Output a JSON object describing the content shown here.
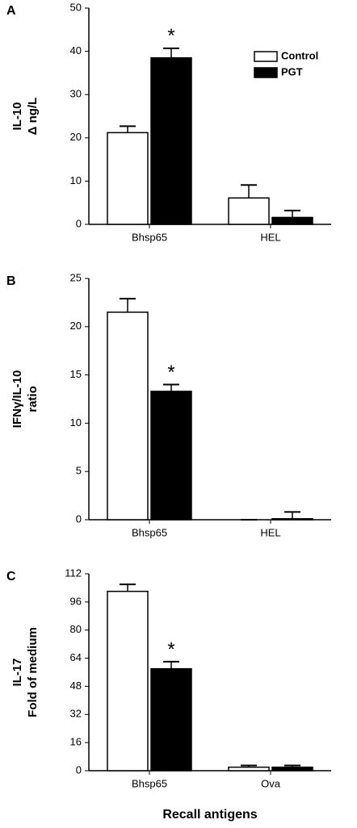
{
  "chart_data": [
    {
      "type": "bar",
      "panel": "A",
      "ylabel": [
        "IL-10",
        "Δ ng/L"
      ],
      "categories": [
        "Bhsp65",
        "HEL"
      ],
      "series": [
        {
          "name": "Control",
          "color": "#ffffff",
          "values": [
            21.2,
            6.1
          ],
          "errors": [
            1.5,
            3.0
          ]
        },
        {
          "name": "PGT",
          "color": "#000000",
          "values": [
            38.5,
            1.6
          ],
          "errors": [
            2.2,
            1.6
          ]
        }
      ],
      "ylim": [
        0,
        50
      ],
      "yticks": [
        0,
        10,
        20,
        30,
        40,
        50
      ],
      "annotation": "*",
      "legend": "upper right"
    },
    {
      "type": "bar",
      "panel": "B",
      "ylabel": [
        "IFNγ/IL-10",
        "ratio"
      ],
      "categories": [
        "Bhsp65",
        "HEL"
      ],
      "series": [
        {
          "color": "#ffffff",
          "values": [
            21.5,
            0
          ],
          "errors": [
            1.4,
            0
          ]
        },
        {
          "color": "#000000",
          "values": [
            13.3,
            0.1
          ],
          "errors": [
            0.7,
            0.7
          ]
        }
      ],
      "ylim": [
        0,
        25
      ],
      "yticks": [
        0,
        5,
        10,
        15,
        20,
        25
      ],
      "annotation": "*"
    },
    {
      "type": "bar",
      "panel": "C",
      "ylabel": [
        "IL-17",
        "Fold of medium"
      ],
      "categories": [
        "Bhsp65",
        "Ova"
      ],
      "xlabel": "Recall antigens",
      "series": [
        {
          "color": "#ffffff",
          "values": [
            102,
            2
          ],
          "errors": [
            4,
            1
          ]
        },
        {
          "color": "#000000",
          "values": [
            58,
            2
          ],
          "errors": [
            4,
            1
          ]
        }
      ],
      "ylim": [
        0,
        112
      ],
      "yticks": [
        0,
        16,
        32,
        48,
        64,
        80,
        96,
        112
      ],
      "annotation": "*"
    }
  ]
}
